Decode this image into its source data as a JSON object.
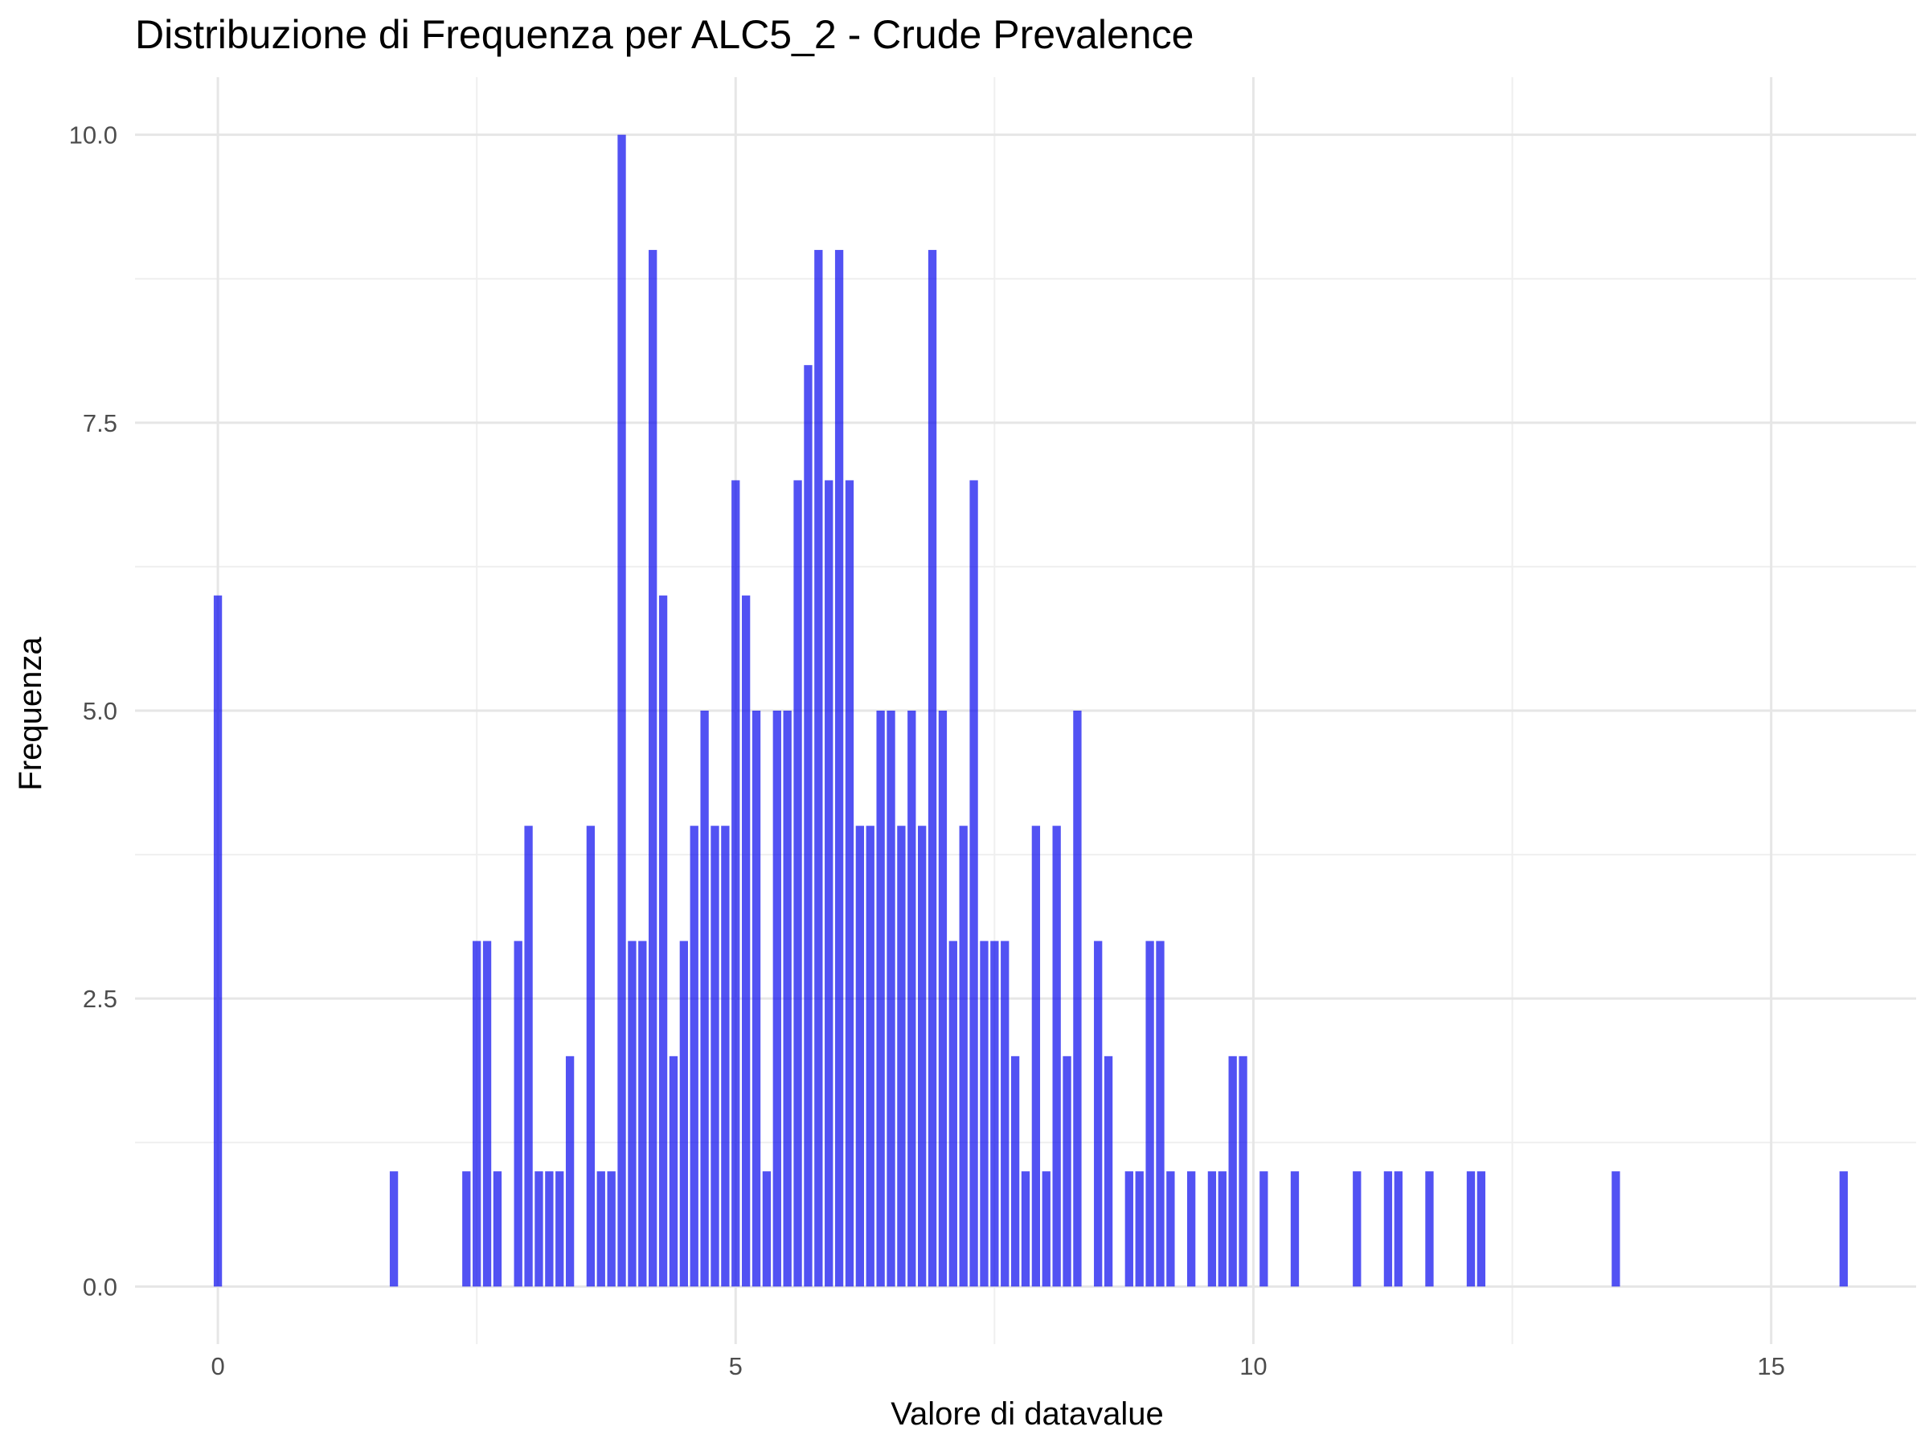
{
  "chart_data": {
    "type": "bar",
    "title": "Distribuzione di Frequenza per ALC5_2 - Crude Prevalence",
    "xlabel": "Valore di datavalue",
    "ylabel": "Frequenza",
    "xlim": [
      -0.8,
      16.4
    ],
    "ylim": [
      -0.5,
      10.5
    ],
    "x_ticks": [
      0,
      5,
      10,
      15
    ],
    "x_tick_labels": [
      "0",
      "5",
      "10",
      "15"
    ],
    "y_ticks": [
      0,
      2.5,
      5,
      7.5,
      10
    ],
    "y_tick_labels": [
      "0.0",
      "2.5",
      "5.0",
      "7.5",
      "10.0"
    ],
    "x_minor_ticks": [
      2.5,
      7.5,
      12.5
    ],
    "y_minor_ticks": [
      1.25,
      3.75,
      6.25,
      8.75
    ],
    "bar_width": 0.08,
    "bar_color": "#0000ee",
    "bar_opacity": 0.68,
    "grid": true,
    "legend": "none",
    "x": [
      0.0,
      1.7,
      2.4,
      2.5,
      2.6,
      2.7,
      2.9,
      3.0,
      3.1,
      3.2,
      3.3,
      3.4,
      3.6,
      3.7,
      3.8,
      3.9,
      4.0,
      4.1,
      4.2,
      4.3,
      4.4,
      4.5,
      4.6,
      4.7,
      4.8,
      4.9,
      5.0,
      5.1,
      5.2,
      5.3,
      5.4,
      5.5,
      5.6,
      5.7,
      5.8,
      5.9,
      6.0,
      6.1,
      6.2,
      6.3,
      6.4,
      6.5,
      6.6,
      6.7,
      6.8,
      6.9,
      7.0,
      7.1,
      7.2,
      7.3,
      7.4,
      7.5,
      7.6,
      7.7,
      7.8,
      7.9,
      8.0,
      8.1,
      8.2,
      8.3,
      8.5,
      8.6,
      8.8,
      8.9,
      9.0,
      9.1,
      9.2,
      9.4,
      9.6,
      9.7,
      9.8,
      9.9,
      10.1,
      10.4,
      11.0,
      11.3,
      11.4,
      11.7,
      12.1,
      12.2,
      13.5,
      15.7
    ],
    "values": [
      6,
      1,
      1,
      3,
      3,
      1,
      3,
      4,
      1,
      1,
      1,
      2,
      4,
      1,
      1,
      10,
      3,
      3,
      9,
      6,
      2,
      3,
      4,
      5,
      4,
      4,
      7,
      6,
      5,
      1,
      5,
      5,
      7,
      8,
      9,
      7,
      9,
      7,
      4,
      4,
      5,
      5,
      4,
      5,
      4,
      9,
      5,
      3,
      4,
      7,
      3,
      3,
      3,
      2,
      1,
      4,
      1,
      4,
      2,
      5,
      3,
      2,
      1,
      1,
      3,
      3,
      1,
      1,
      1,
      1,
      2,
      2,
      1,
      1,
      1,
      1,
      1,
      1,
      1,
      1,
      1,
      1
    ]
  }
}
